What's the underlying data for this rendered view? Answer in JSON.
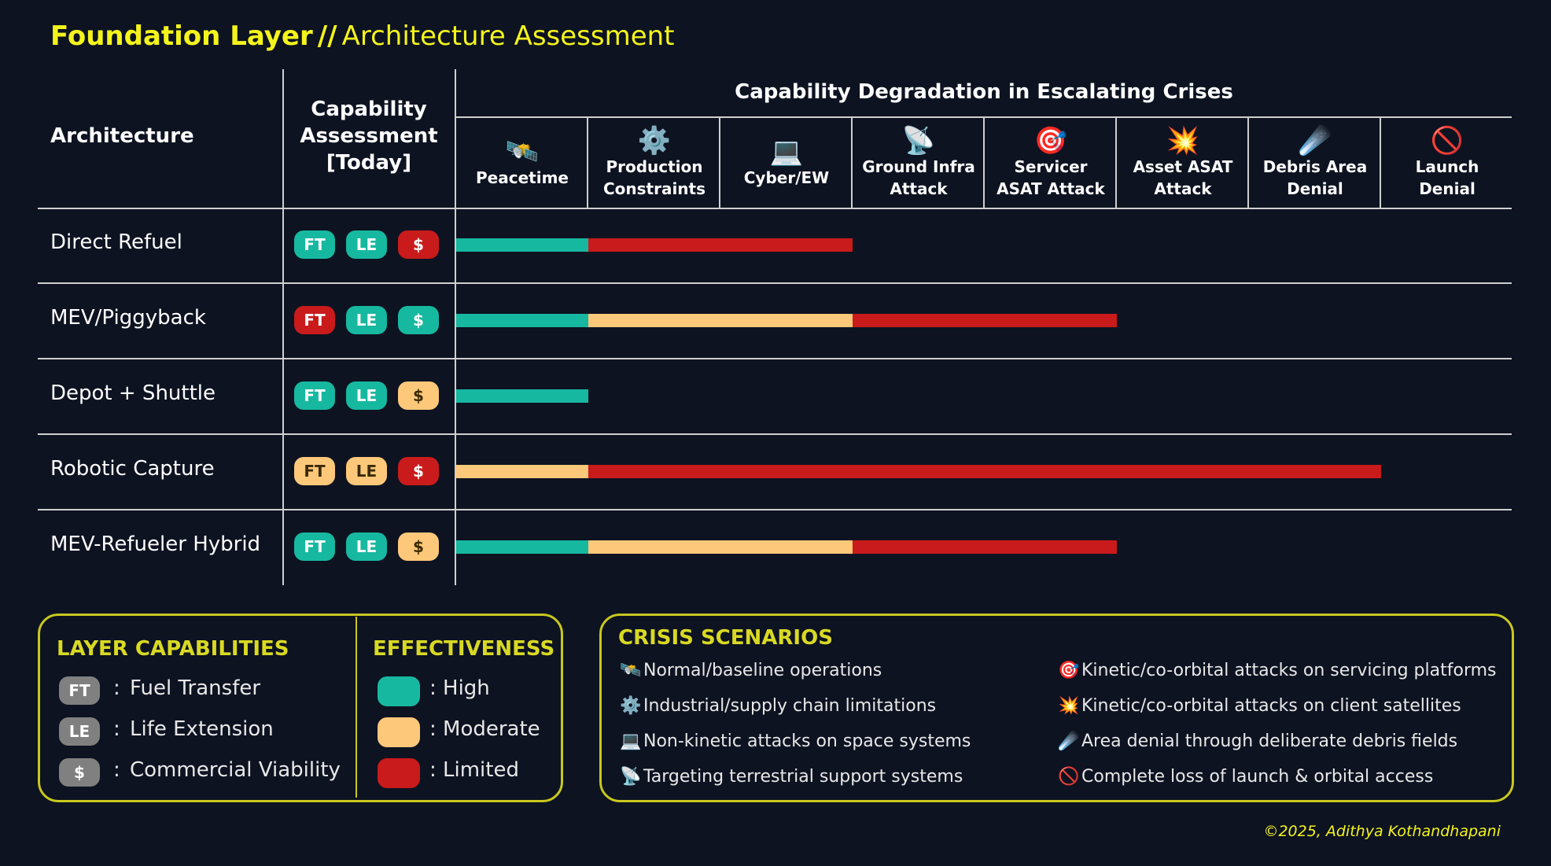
{
  "title": {
    "bold": "Foundation Layer",
    "sep": "//",
    "rest": "Architecture Assessment"
  },
  "colors": {
    "high": "#17b8a0",
    "moderate": "#fec87a",
    "limited": "#c91b1b"
  },
  "headers": {
    "architecture": "Architecture",
    "capability": "Capability\nAssessment\n[Today]",
    "crises": "Capability Degradation in Escalating Crises"
  },
  "chart_data": {
    "type": "bar",
    "title": "Capability Degradation in Escalating Crises",
    "categories": [
      "Peacetime",
      "Production Constraints",
      "Cyber/EW",
      "Ground Infra Attack",
      "Servicer ASAT Attack",
      "Asset ASAT Attack",
      "Debris Area Denial",
      "Launch Denial"
    ],
    "category_labels": [
      "Peacetime",
      "Production\nConstraints",
      "Cyber/EW",
      "Ground Infra\nAttack",
      "Servicer\nASAT Attack",
      "Asset ASAT\nAttack",
      "Debris Area\nDenial",
      "Launch\nDenial"
    ],
    "category_icons": [
      "🛰️",
      "⚙️",
      "💻",
      "📡",
      "🎯",
      "💥",
      "☄️",
      "🚫"
    ],
    "series": [
      {
        "name": "Direct Refuel",
        "levels": [
          "high",
          "limited",
          "limited"
        ]
      },
      {
        "name": "MEV/Piggyback",
        "levels": [
          "high",
          "moderate",
          "moderate",
          "limited",
          "limited"
        ]
      },
      {
        "name": "Depot + Shuttle",
        "levels": [
          "high"
        ]
      },
      {
        "name": "Robotic Capture",
        "levels": [
          "moderate",
          "limited",
          "limited",
          "limited",
          "limited",
          "limited",
          "limited"
        ]
      },
      {
        "name": "MEV-Refueler Hybrid",
        "levels": [
          "high",
          "moderate",
          "moderate",
          "limited",
          "limited"
        ]
      }
    ]
  },
  "assessments": [
    [
      {
        "label": "FT",
        "level": "high"
      },
      {
        "label": "LE",
        "level": "high"
      },
      {
        "label": "$",
        "level": "limited"
      }
    ],
    [
      {
        "label": "FT",
        "level": "limited"
      },
      {
        "label": "LE",
        "level": "high"
      },
      {
        "label": "$",
        "level": "high"
      }
    ],
    [
      {
        "label": "FT",
        "level": "high"
      },
      {
        "label": "LE",
        "level": "high"
      },
      {
        "label": "$",
        "level": "moderate"
      }
    ],
    [
      {
        "label": "FT",
        "level": "moderate"
      },
      {
        "label": "LE",
        "level": "moderate"
      },
      {
        "label": "$",
        "level": "limited"
      }
    ],
    [
      {
        "label": "FT",
        "level": "high"
      },
      {
        "label": "LE",
        "level": "high"
      },
      {
        "label": "$",
        "level": "moderate"
      }
    ]
  ],
  "layer_capabilities": {
    "title": "LAYER CAPABILITIES",
    "items": [
      {
        "badge": "FT",
        "sep": ":",
        "text": "Fuel Transfer"
      },
      {
        "badge": "LE",
        "sep": ":",
        "text": "Life Extension"
      },
      {
        "badge": "$",
        "sep": ":",
        "text": "Commercial Viability"
      }
    ]
  },
  "effectiveness": {
    "title": "EFFECTIVENESS",
    "items": [
      {
        "level": "high",
        "text": ": High"
      },
      {
        "level": "moderate",
        "text": ": Moderate"
      },
      {
        "level": "limited",
        "text": ": Limited"
      }
    ]
  },
  "crisis_scenarios": {
    "title": "CRISIS SCENARIOS",
    "items": [
      {
        "icon": "🛰️",
        "text": "Normal/baseline operations"
      },
      {
        "icon": "⚙️",
        "text": "Industrial/supply chain limitations"
      },
      {
        "icon": "💻",
        "text": "Non-kinetic attacks on space systems"
      },
      {
        "icon": "📡",
        "text": "Targeting terrestrial support systems"
      },
      {
        "icon": "🎯",
        "text": "Kinetic/co-orbital attacks on servicing platforms"
      },
      {
        "icon": "💥",
        "text": "Kinetic/co-orbital attacks on client satellites"
      },
      {
        "icon": "☄️",
        "text": "Area denial through deliberate debris fields"
      },
      {
        "icon": "🚫",
        "text": "Complete loss of launch & orbital access"
      }
    ]
  },
  "credit": "©2025, Adithya Kothandhapani"
}
